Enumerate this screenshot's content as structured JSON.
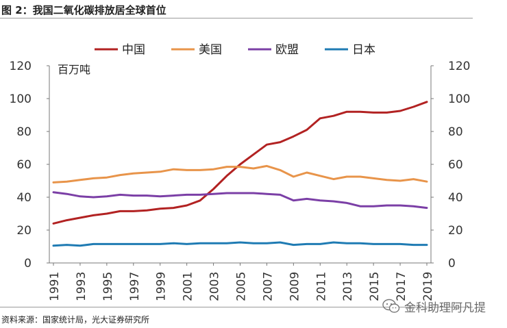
{
  "figure_title": "图 2：我国二氧化碳排放居全球首位",
  "source_note": "资料来源：国家统计局，光大证券研究所",
  "watermark_text": "金科助理阿凡提",
  "chart_data": {
    "type": "line",
    "unit_label": "百万吨",
    "ylim": [
      0,
      120
    ],
    "yticks": [
      0,
      20,
      40,
      60,
      80,
      100,
      120
    ],
    "x_tick_labels": [
      "1991",
      "1993",
      "1995",
      "1997",
      "1999",
      "2001",
      "2003",
      "2005",
      "2007",
      "2009",
      "2011",
      "2013",
      "2015",
      "2017",
      "2019"
    ],
    "x": [
      1991,
      1992,
      1993,
      1994,
      1995,
      1996,
      1997,
      1998,
      1999,
      2000,
      2001,
      2002,
      2003,
      2004,
      2005,
      2006,
      2007,
      2008,
      2009,
      2010,
      2011,
      2012,
      2013,
      2014,
      2015,
      2016,
      2017,
      2018,
      2019
    ],
    "grid": false,
    "legend_position": "top",
    "series": [
      {
        "name": "中国",
        "color": "#b22222",
        "values": [
          24,
          26,
          27.5,
          29,
          30,
          31.5,
          31.5,
          32,
          33,
          33.5,
          35,
          38,
          45,
          53,
          60,
          66,
          72,
          73.5,
          77,
          81,
          88,
          89.5,
          92,
          92,
          91.5,
          91.5,
          92.5,
          95,
          98
        ]
      },
      {
        "name": "美国",
        "color": "#e8944a",
        "values": [
          49,
          49.5,
          50.5,
          51.5,
          52,
          53.5,
          54.5,
          55,
          55.5,
          57,
          56.5,
          56.5,
          57,
          58.5,
          58.5,
          57.5,
          59,
          56.5,
          52.5,
          55,
          53,
          51,
          52.5,
          52.5,
          51.5,
          50.5,
          50,
          51,
          49.5
        ]
      },
      {
        "name": "欧盟",
        "color": "#7b3fa6",
        "values": [
          43,
          42,
          40.5,
          40,
          40.5,
          41.5,
          41,
          41,
          40.5,
          41,
          41.5,
          41.5,
          42,
          42.5,
          42.5,
          42.5,
          42,
          41.5,
          38,
          39,
          38,
          37.5,
          36.5,
          34.5,
          34.5,
          35,
          35,
          34.5,
          33.5
        ]
      },
      {
        "name": "日本",
        "color": "#1f7bb3",
        "values": [
          10.5,
          11,
          10.5,
          11.5,
          11.5,
          11.5,
          11.5,
          11.5,
          11.5,
          12,
          11.5,
          12,
          12,
          12,
          12.5,
          12,
          12,
          12.5,
          11,
          11.5,
          11.5,
          12.5,
          12,
          12,
          11.5,
          11.5,
          11.5,
          11,
          11
        ]
      }
    ]
  }
}
